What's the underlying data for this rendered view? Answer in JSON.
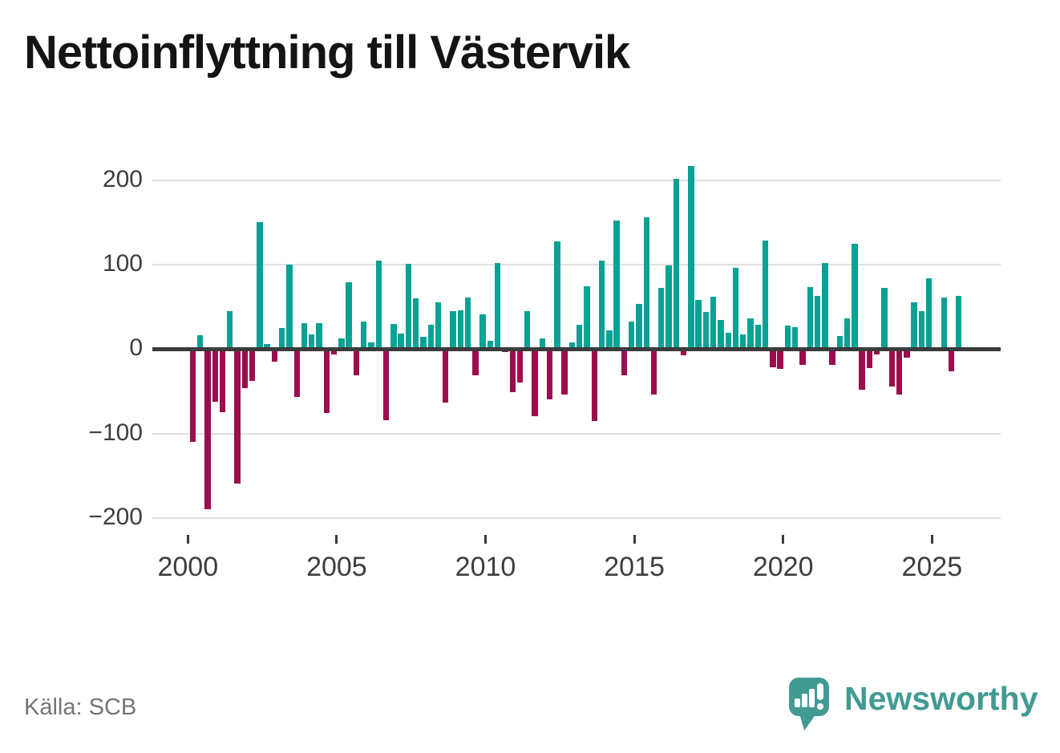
{
  "title": "Nettoinflyttning till Västervik",
  "source": "Källa: SCB",
  "branding": {
    "logo_text": "Newsworthy",
    "logo_icon": "speech-bubble-bar-chart-icon"
  },
  "colors": {
    "positive_bar": "#07a294",
    "negative_bar": "#9d0c4e",
    "axis": "#3b3b3b",
    "gridline": "#e0e0e0",
    "title_text": "#141414",
    "tick_label": "#3d3d3d",
    "source_text": "#757575",
    "brand_teal": "#429a93"
  },
  "chart_data": {
    "type": "bar",
    "title": "Nettoinflyttning till Västervik",
    "frequency": "quarterly",
    "start_period": "2000-Q1",
    "end_period": "2025-Q4",
    "x_tick_labels": [
      "2000",
      "2005",
      "2010",
      "2015",
      "2020",
      "2025"
    ],
    "y_tick_labels": [
      "200",
      "100",
      "0",
      "−100",
      "−200"
    ],
    "y_tick_values": [
      200,
      100,
      0,
      -100,
      -200
    ],
    "ylim": [
      -210,
      228
    ],
    "grid": "horizontal",
    "legend": "none",
    "positive_color": "#07a294",
    "negative_color": "#9d0c4e",
    "series": [
      {
        "name": "Nettoinflyttning",
        "values": [
          -110,
          16,
          -190,
          -62,
          -75,
          45,
          -159,
          -46,
          -38,
          150,
          6,
          -15,
          25,
          100,
          -57,
          31,
          17,
          31,
          -76,
          -6,
          13,
          79,
          -31,
          32,
          8,
          105,
          -84,
          30,
          18,
          101,
          60,
          14,
          29,
          55,
          -63,
          45,
          46,
          61,
          -31,
          41,
          10,
          102,
          -4,
          -51,
          -40,
          45,
          -80,
          13,
          -60,
          127,
          -54,
          8,
          29,
          74,
          -85,
          105,
          22,
          152,
          -31,
          32,
          53,
          156,
          -54,
          72,
          99,
          201,
          -7,
          217,
          58,
          44,
          62,
          34,
          19,
          96,
          17,
          36,
          29,
          128,
          -22,
          -24,
          28,
          26,
          -19,
          73,
          63,
          102,
          -19,
          15,
          36,
          125,
          -48,
          -23,
          -6,
          72,
          -44,
          -54,
          -10,
          55,
          45,
          84,
          0,
          61,
          -26,
          63
        ]
      }
    ]
  }
}
